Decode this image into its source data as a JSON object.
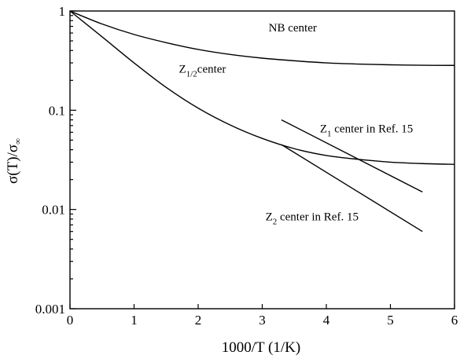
{
  "chart_data": {
    "type": "line",
    "title": "",
    "xlabel": "1000/T (1/K)",
    "ylabel": {
      "main": "σ(T)/σ",
      "sub": "∞"
    },
    "xlim": [
      0,
      6
    ],
    "ylim": [
      0.001,
      1
    ],
    "yscale": "log",
    "x_ticks": [
      0,
      1,
      2,
      3,
      4,
      5,
      6
    ],
    "x_tick_labels": [
      "0",
      "1",
      "2",
      "3",
      "4",
      "5",
      "6"
    ],
    "y_ticks": [
      0.001,
      0.01,
      0.1,
      1
    ],
    "y_tick_labels": [
      "0.001",
      "0.01",
      "0.1",
      "1"
    ],
    "grid": false,
    "legend": "none",
    "series": [
      {
        "id": "nb",
        "x": [
          0,
          0.5,
          1,
          1.5,
          2,
          2.5,
          3,
          3.5,
          4,
          4.5,
          5,
          5.5,
          6
        ],
        "y": [
          1,
          0.74,
          0.58,
          0.48,
          0.41,
          0.365,
          0.335,
          0.315,
          0.3,
          0.292,
          0.287,
          0.284,
          0.283
        ]
      },
      {
        "id": "z12",
        "x": [
          0,
          0.5,
          1,
          1.5,
          2,
          2.5,
          3,
          3.5,
          4,
          4.5,
          5,
          5.5,
          6
        ],
        "y": [
          1,
          0.55,
          0.3,
          0.17,
          0.105,
          0.071,
          0.052,
          0.041,
          0.035,
          0.032,
          0.03,
          0.029,
          0.0285
        ]
      },
      {
        "id": "z1",
        "x": [
          3.3,
          5.5
        ],
        "y": [
          0.08,
          0.015
        ]
      },
      {
        "id": "z2",
        "x": [
          3.3,
          5.5
        ],
        "y": [
          0.045,
          0.006
        ]
      }
    ],
    "annotations": [
      {
        "id": "nb-label",
        "x": 3.1,
        "y": 0.62,
        "main": "NB center",
        "sub": "",
        "tail": ""
      },
      {
        "id": "z12-label",
        "x": 1.7,
        "y": 0.24,
        "main": "Z",
        "sub": "1/2",
        "tail": "center"
      },
      {
        "id": "z1-label",
        "x": 3.9,
        "y": 0.06,
        "main": "Z",
        "sub": "1",
        "tail": " center in Ref. 15"
      },
      {
        "id": "z2-label",
        "x": 3.05,
        "y": 0.0078,
        "main": "Z",
        "sub": "2",
        "tail": " center in Ref. 15"
      }
    ]
  }
}
